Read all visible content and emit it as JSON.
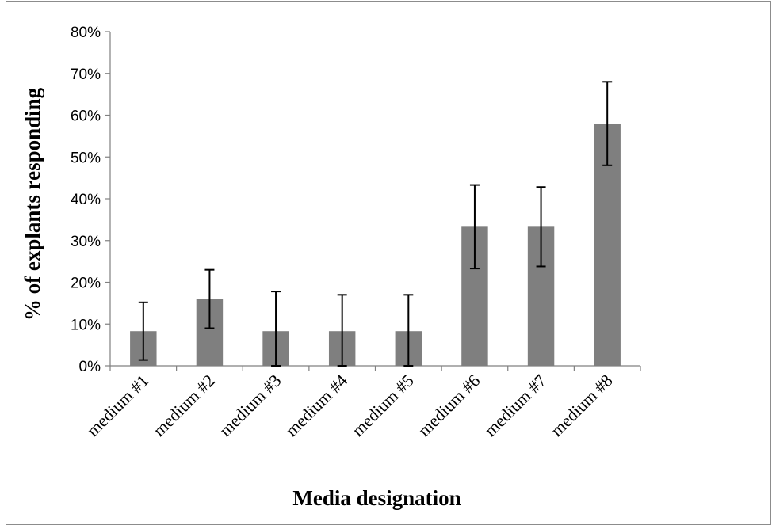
{
  "chart_data": {
    "type": "bar",
    "title": "",
    "xlabel": "Media designation",
    "ylabel": "% of explants responding",
    "categories": [
      "medium #1",
      "medium #2",
      "medium #3",
      "medium #4",
      "medium #5",
      "medium #6",
      "medium #7",
      "medium #8"
    ],
    "series": [
      {
        "values": [
          8.3,
          16.0,
          8.3,
          8.3,
          8.3,
          33.3,
          33.3,
          58.0
        ],
        "error": [
          6.9,
          7.0,
          9.5,
          8.7,
          8.7,
          10.0,
          9.5,
          10.0
        ],
        "color": "#7f7f7f"
      }
    ],
    "ylim": [
      0,
      80
    ],
    "y_ticks": [
      "0%",
      "10%",
      "20%",
      "30%",
      "40%",
      "50%",
      "60%",
      "70%",
      "80%"
    ],
    "grid": false,
    "legend": "none"
  }
}
